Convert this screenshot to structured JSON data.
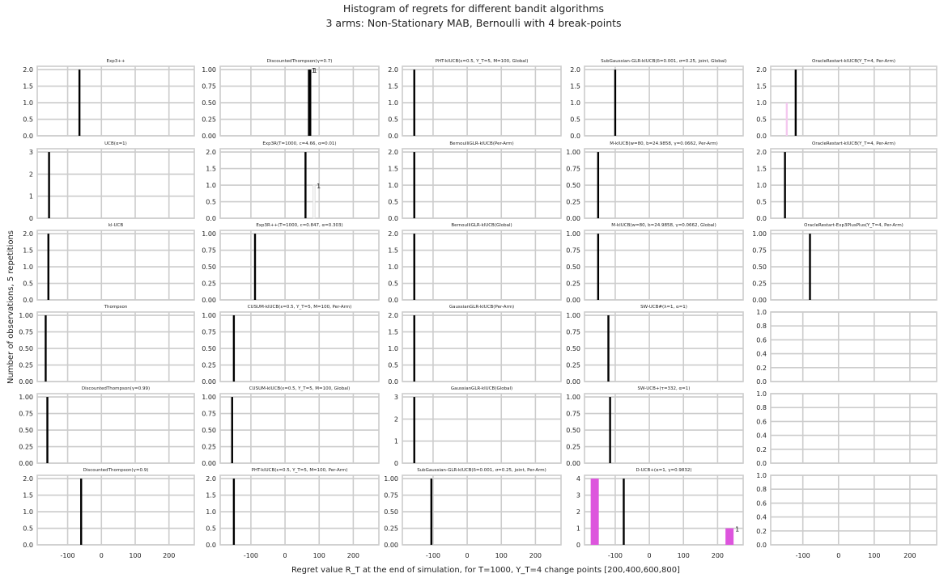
{
  "figure": {
    "title_line1": "Histogram of regrets for different bandit algorithms",
    "title_line2": "3 arms: Non-Stationary MAB, Bernoulli with 4 break-points",
    "xlabel": "Regret value R_T at the end of simulation, for T=1000, Υ_T=4 change points [200,400,600,800]",
    "ylabel": "Number of observations, 5 repetitions",
    "x_ticks": [
      -100,
      0,
      100,
      200
    ],
    "x_range": [
      -190,
      275
    ],
    "colors": {
      "bar": "#000000",
      "highlight": "#dd55dd",
      "faint": "#f4c8ef",
      "grid": "#cccccc"
    }
  },
  "chart_data": [
    {
      "type": "bar",
      "title": "Exp3++",
      "y_ticks": [
        "0.0",
        "0.5",
        "1.0",
        "1.5",
        "2.0"
      ],
      "ylim": [
        0,
        2.1
      ],
      "bars": [
        {
          "x": -65,
          "value": 2,
          "color": "#000000"
        }
      ]
    },
    {
      "type": "bar",
      "title": "DiscountedThompson(γ=0.7)",
      "y_ticks": [
        "0.00",
        "0.25",
        "0.50",
        "0.75",
        "1.00"
      ],
      "ylim": [
        0,
        1.05
      ],
      "bars": [
        {
          "x": 70,
          "value": 1,
          "color": "#000000",
          "label": "1"
        },
        {
          "x": 74,
          "value": 1,
          "color": "#000000",
          "label": "1"
        }
      ]
    },
    {
      "type": "bar",
      "title": "PHT-klUCB(ε=0.5, Υ_T=5, M=100, Global)",
      "y_ticks": [
        "0.0",
        "0.5",
        "1.0",
        "1.5",
        "2.0"
      ],
      "ylim": [
        0,
        2.1
      ],
      "bars": [
        {
          "x": -155,
          "value": 2,
          "color": "#000000"
        }
      ]
    },
    {
      "type": "bar",
      "title": "SubGaussian-GLR-klUCB(δ=0.001, σ=0.25, joint, Global)",
      "y_ticks": [
        "0.0",
        "0.5",
        "1.0",
        "1.5",
        "2.0"
      ],
      "ylim": [
        0,
        2.1
      ],
      "bars": [
        {
          "x": -100,
          "value": 2,
          "color": "#000000"
        }
      ]
    },
    {
      "type": "bar",
      "title": "OracleRestart-klUCB(Υ_T=4, Per-Arm)",
      "y_ticks": [
        "0.0",
        "0.5",
        "1.0",
        "1.5",
        "2.0"
      ],
      "ylim": [
        0,
        2.1
      ],
      "bars": [
        {
          "x": -145,
          "value": 1,
          "color": "#f4c8ef"
        },
        {
          "x": -120,
          "value": 2,
          "color": "#000000"
        }
      ]
    },
    {
      "type": "bar",
      "title": "UCB(α=1)",
      "y_ticks": [
        "0",
        "1",
        "2",
        "3"
      ],
      "ylim": [
        0,
        3.15
      ],
      "bars": [
        {
          "x": -155,
          "value": 3,
          "color": "#000000"
        }
      ]
    },
    {
      "type": "bar",
      "title": "Exp3R(T=1000, c=4.66, α=0.01)",
      "y_ticks": [
        "0.0",
        "0.5",
        "1.0",
        "1.5",
        "2.0"
      ],
      "ylim": [
        0,
        2.1
      ],
      "bars": [
        {
          "x": 60,
          "value": 2,
          "color": "#000000"
        },
        {
          "x": 85,
          "value": 1,
          "color": "#ffffff",
          "label": "1"
        }
      ]
    },
    {
      "type": "bar",
      "title": "BernoulliGLR-klUCB(Per-Arm)",
      "y_ticks": [
        "0.0",
        "0.5",
        "1.0",
        "1.5",
        "2.0"
      ],
      "ylim": [
        0,
        2.1
      ],
      "bars": [
        {
          "x": -155,
          "value": 2,
          "color": "#000000"
        }
      ]
    },
    {
      "type": "bar",
      "title": "M-klUCB(w=80, b=24.9858, γ=0.0662, Per-Arm)",
      "y_ticks": [
        "0.00",
        "0.25",
        "0.50",
        "0.75",
        "1.00"
      ],
      "ylim": [
        0,
        1.05
      ],
      "bars": [
        {
          "x": -150,
          "value": 1,
          "color": "#000000"
        }
      ]
    },
    {
      "type": "bar",
      "title": "OracleRestart-klUCB(Υ_T=4, Per-Arm)",
      "y_ticks": [
        "0.0",
        "0.5",
        "1.0",
        "1.5",
        "2.0"
      ],
      "ylim": [
        0,
        2.1
      ],
      "bars": [
        {
          "x": -150,
          "value": 2,
          "color": "#000000"
        }
      ]
    },
    {
      "type": "bar",
      "title": "kl-UCB",
      "y_ticks": [
        "0.0",
        "0.5",
        "1.0",
        "1.5",
        "2.0"
      ],
      "ylim": [
        0,
        2.1
      ],
      "bars": [
        {
          "x": -157,
          "value": 2,
          "color": "#000000"
        }
      ]
    },
    {
      "type": "bar",
      "title": "Exp3R++(T=1000, c=0.847, α=0.303)",
      "y_ticks": [
        "0.00",
        "0.25",
        "0.50",
        "0.75",
        "1.00"
      ],
      "ylim": [
        0,
        1.05
      ],
      "bars": [
        {
          "x": -88,
          "value": 1,
          "color": "#000000"
        }
      ]
    },
    {
      "type": "bar",
      "title": "BernoulliGLR-klUCB(Global)",
      "y_ticks": [
        "0.0",
        "0.5",
        "1.0",
        "1.5",
        "2.0"
      ],
      "ylim": [
        0,
        2.1
      ],
      "bars": [
        {
          "x": -155,
          "value": 2,
          "color": "#000000"
        }
      ]
    },
    {
      "type": "bar",
      "title": "M-klUCB(w=80, b=24.9858, γ=0.0662, Global)",
      "y_ticks": [
        "0.00",
        "0.25",
        "0.50",
        "0.75",
        "1.00"
      ],
      "ylim": [
        0,
        1.05
      ],
      "bars": [
        {
          "x": -150,
          "value": 1,
          "color": "#000000"
        }
      ]
    },
    {
      "type": "bar",
      "title": "OracleRestart-Exp3PlusPlus(Υ_T=4, Per-Arm)",
      "y_ticks": [
        "0.00",
        "0.25",
        "0.50",
        "0.75",
        "1.00"
      ],
      "ylim": [
        0,
        1.05
      ],
      "bars": [
        {
          "x": -80,
          "value": 1,
          "color": "#000000"
        }
      ]
    },
    {
      "type": "bar",
      "title": "Thompson",
      "y_ticks": [
        "0.00",
        "0.25",
        "0.50",
        "0.75",
        "1.00"
      ],
      "ylim": [
        0,
        1.05
      ],
      "bars": [
        {
          "x": -165,
          "value": 1,
          "color": "#000000"
        }
      ]
    },
    {
      "type": "bar",
      "title": "CUSUM-klUCB(ε=0.5, Υ_T=5, M=100, Per-Arm)",
      "y_ticks": [
        "0.00",
        "0.25",
        "0.50",
        "0.75",
        "1.00"
      ],
      "ylim": [
        0,
        1.05
      ],
      "bars": [
        {
          "x": -150,
          "value": 1,
          "color": "#000000"
        }
      ]
    },
    {
      "type": "bar",
      "title": "GaussianGLR-klUCB(Per-Arm)",
      "y_ticks": [
        "0.0",
        "0.5",
        "1.0",
        "1.5",
        "2.0"
      ],
      "ylim": [
        0,
        2.1
      ],
      "bars": [
        {
          "x": -155,
          "value": 2,
          "color": "#000000"
        }
      ]
    },
    {
      "type": "bar",
      "title": "SW-UCB#(λ=1, α=1)",
      "y_ticks": [
        "0.00",
        "0.25",
        "0.50",
        "0.75",
        "1.00"
      ],
      "ylim": [
        0,
        1.05
      ],
      "bars": [
        {
          "x": -120,
          "value": 1,
          "color": "#000000"
        }
      ]
    },
    {
      "type": "bar",
      "title": "",
      "y_ticks": [
        "0.0",
        "0.2",
        "0.4",
        "0.6",
        "0.8",
        "1.0"
      ],
      "ylim": [
        0,
        1.0
      ],
      "bars": []
    },
    {
      "type": "bar",
      "title": "DiscountedThompson(γ=0.99)",
      "y_ticks": [
        "0.00",
        "0.25",
        "0.50",
        "0.75",
        "1.00"
      ],
      "ylim": [
        0,
        1.05
      ],
      "bars": [
        {
          "x": -160,
          "value": 1,
          "color": "#000000"
        }
      ]
    },
    {
      "type": "bar",
      "title": "CUSUM-klUCB(ε=0.5, Υ_T=5, M=100, Global)",
      "y_ticks": [
        "0.00",
        "0.25",
        "0.50",
        "0.75",
        "1.00"
      ],
      "ylim": [
        0,
        1.05
      ],
      "bars": [
        {
          "x": -155,
          "value": 1,
          "color": "#000000"
        }
      ]
    },
    {
      "type": "bar",
      "title": "GaussianGLR-klUCB(Global)",
      "y_ticks": [
        "0",
        "1",
        "2",
        "3"
      ],
      "ylim": [
        0,
        3.15
      ],
      "bars": [
        {
          "x": -155,
          "value": 3,
          "color": "#000000"
        }
      ]
    },
    {
      "type": "bar",
      "title": "SW-UCB+(τ=332, α=1)",
      "y_ticks": [
        "0.00",
        "0.25",
        "0.50",
        "0.75",
        "1.00"
      ],
      "ylim": [
        0,
        1.05
      ],
      "bars": [
        {
          "x": -115,
          "value": 1,
          "color": "#000000"
        }
      ]
    },
    {
      "type": "bar",
      "title": "",
      "y_ticks": [
        "0.0",
        "0.2",
        "0.4",
        "0.6",
        "0.8",
        "1.0"
      ],
      "ylim": [
        0,
        1.0
      ],
      "bars": []
    },
    {
      "type": "bar",
      "title": "DiscountedThompson(γ=0.9)",
      "y_ticks": [
        "0.0",
        "0.5",
        "1.0",
        "1.5",
        "2.0"
      ],
      "ylim": [
        0,
        2.1
      ],
      "bars": [
        {
          "x": -60,
          "value": 2,
          "color": "#000000"
        }
      ]
    },
    {
      "type": "bar",
      "title": "PHT-klUCB(ε=0.5, Υ_T=5, M=100, Per-Arm)",
      "y_ticks": [
        "0.0",
        "0.5",
        "1.0",
        "1.5",
        "2.0"
      ],
      "ylim": [
        0,
        2.1
      ],
      "bars": [
        {
          "x": -150,
          "value": 2,
          "color": "#000000"
        }
      ]
    },
    {
      "type": "bar",
      "title": "SubGaussian-GLR-klUCB(δ=0.001, σ=0.25, joint, Per-Arm)",
      "y_ticks": [
        "0.00",
        "0.25",
        "0.50",
        "0.75",
        "1.00"
      ],
      "ylim": [
        0,
        1.05
      ],
      "bars": [
        {
          "x": -105,
          "value": 1,
          "color": "#000000"
        }
      ]
    },
    {
      "type": "bar",
      "title": "D-UCB+(α=1, γ=0.9832)",
      "y_ticks": [
        "0",
        "1",
        "2",
        "3",
        "4"
      ],
      "ylim": [
        0,
        4.2
      ],
      "bars": [
        {
          "x": -160,
          "value": 4,
          "color": "#dd55dd",
          "wide": true
        },
        {
          "x": -75,
          "value": 4,
          "color": "#000000"
        },
        {
          "x": 235,
          "value": 1,
          "color": "#dd55dd",
          "wide": true,
          "label": "1"
        }
      ]
    },
    {
      "type": "bar",
      "title": "",
      "y_ticks": [
        "0.0",
        "0.2",
        "0.4",
        "0.6",
        "0.8",
        "1.0"
      ],
      "ylim": [
        0,
        1.0
      ],
      "bars": []
    }
  ]
}
